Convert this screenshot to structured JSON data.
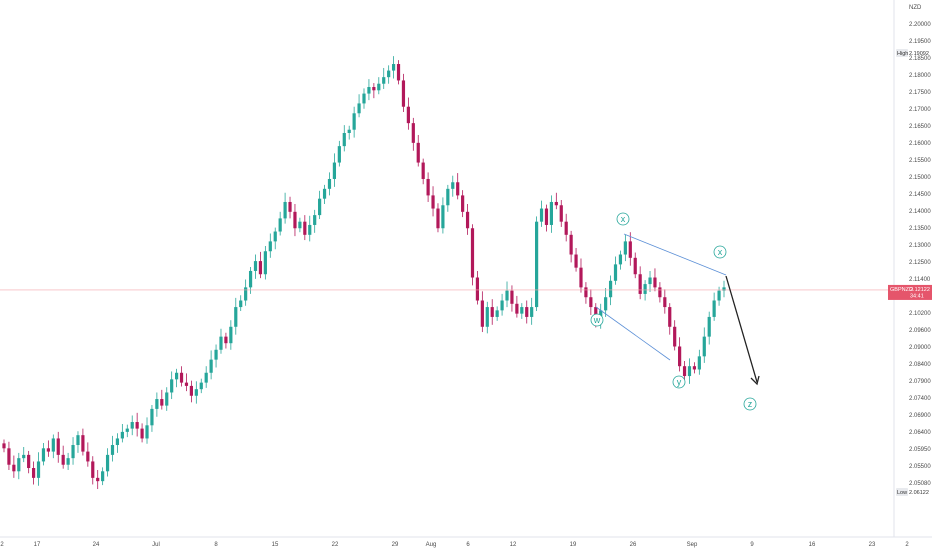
{
  "chart_data": {
    "type": "candlestick",
    "currency": "NZD",
    "symbol": "GBPNZD",
    "last_price": "2.12122",
    "countdown": "34:41",
    "high_label": "High",
    "high_value": "2.19092",
    "low_label": "Low",
    "low_value": "2.06122",
    "y_ticks": [
      "2.20000",
      "2.19500",
      "2.18500",
      "2.18000",
      "2.17500",
      "2.17000",
      "2.16500",
      "2.16000",
      "2.15500",
      "2.15000",
      "2.14500",
      "2.14000",
      "2.13500",
      "2.13000",
      "2.12500",
      "2.11400",
      "2.10800",
      "2.10200",
      "2.09600",
      "2.09000",
      "2.08400",
      "2.07900",
      "2.07400",
      "2.06900",
      "2.06400",
      "2.05950",
      "2.05500",
      "2.05080"
    ],
    "x_ticks": [
      "2",
      "17",
      "24",
      "Jul",
      "8",
      "15",
      "22",
      "29",
      "Aug",
      "6",
      "12",
      "19",
      "26",
      "Sep",
      "9",
      "16",
      "23",
      "2"
    ],
    "wave_labels": [
      "w",
      "x",
      "y",
      "x",
      "z"
    ],
    "colors": {
      "up": "#26a69a",
      "down": "#b2185a",
      "current_price_line": "#f4a6ae",
      "price_badge": "#e5556b",
      "trendline": "#5b8fd6",
      "projection": "#222222",
      "wave": "#26a69a"
    },
    "price_path": [
      2.073,
      2.068,
      2.066,
      2.07,
      2.071,
      2.067,
      2.064,
      2.069,
      2.073,
      2.072,
      2.076,
      2.071,
      2.068,
      2.07,
      2.074,
      2.077,
      2.072,
      2.069,
      2.064,
      2.063,
      2.066,
      2.071,
      2.074,
      2.076,
      2.078,
      2.079,
      2.081,
      2.079,
      2.076,
      2.08,
      2.085,
      2.088,
      2.086,
      2.09,
      2.094,
      2.096,
      2.093,
      2.092,
      2.089,
      2.091,
      2.093,
      2.096,
      2.1,
      2.103,
      2.107,
      2.105,
      2.11,
      2.116,
      2.118,
      2.122,
      2.127,
      2.13,
      2.126,
      2.133,
      2.136,
      2.139,
      2.143,
      2.148,
      2.145,
      2.14,
      2.142,
      2.138,
      2.141,
      2.144,
      2.149,
      2.152,
      2.155,
      2.16,
      2.165,
      2.169,
      2.17,
      2.175,
      2.178,
      2.181,
      2.183,
      2.182,
      2.184,
      2.186,
      2.188,
      2.19,
      2.185,
      2.177,
      2.172,
      2.166,
      2.16,
      2.155,
      2.15,
      2.146,
      2.14,
      2.147,
      2.152,
      2.154,
      2.15,
      2.145,
      2.14,
      2.125,
      2.118,
      2.11,
      2.116,
      2.113,
      2.115,
      2.118,
      2.121,
      2.117,
      2.114,
      2.116,
      2.113,
      2.116,
      2.142,
      2.146,
      2.141,
      2.148,
      2.147,
      2.142,
      2.138,
      2.132,
      2.128,
      2.122,
      2.119,
      2.116,
      2.111,
      2.115,
      2.119,
      2.124,
      2.129,
      2.132,
      2.136,
      2.131,
      2.126,
      2.12,
      2.123,
      2.125,
      2.122,
      2.119,
      2.116,
      2.11,
      2.104,
      2.098,
      2.095,
      2.098,
      2.097,
      2.101,
      2.107,
      2.113,
      2.118,
      2.121,
      2.122
    ]
  }
}
